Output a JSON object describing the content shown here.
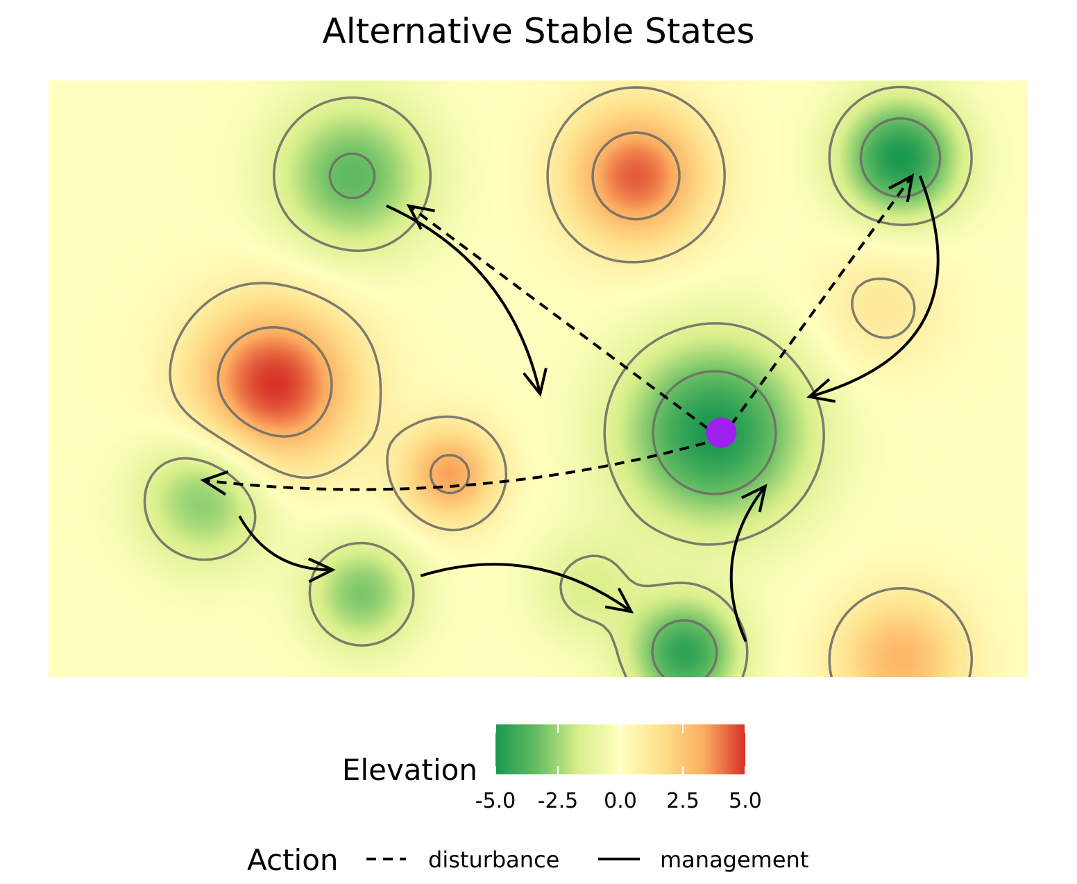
{
  "chart_data": {
    "type": "heatmap",
    "title": "Alternative Stable States",
    "xlabel": "",
    "ylabel": "",
    "fill_legend": {
      "title": "Elevation",
      "ticks": [
        "-5.0",
        "-2.5",
        "0.0",
        "2.5",
        "5.0"
      ],
      "range": [
        -5,
        5
      ],
      "colors": [
        "#1a9850",
        "#66bd63",
        "#d9ef8b",
        "#ffffbf",
        "#fee08b",
        "#fdae61",
        "#d73027"
      ]
    },
    "linetype_legend": {
      "title": "Action",
      "entries": [
        "disturbance",
        "management"
      ]
    },
    "surface": {
      "base": 0,
      "features": [
        {
          "x": 0.31,
          "y": 0.84,
          "h": -3.5,
          "s": 0.07
        },
        {
          "x": 0.23,
          "y": 0.49,
          "h": 5.0,
          "s": 0.075
        },
        {
          "x": 0.6,
          "y": 0.84,
          "h": 4.4,
          "s": 0.065
        },
        {
          "x": 0.87,
          "y": 0.87,
          "h": -5.0,
          "s": 0.055
        },
        {
          "x": 0.68,
          "y": 0.41,
          "h": -5.0,
          "s": 0.085
        },
        {
          "x": 0.41,
          "y": 0.34,
          "h": 3.5,
          "s": 0.045
        },
        {
          "x": 0.16,
          "y": 0.3,
          "h": -3.0,
          "s": 0.06
        },
        {
          "x": 0.32,
          "y": 0.14,
          "h": -3.0,
          "s": 0.05
        },
        {
          "x": 0.65,
          "y": 0.04,
          "h": -4.5,
          "s": 0.05
        },
        {
          "x": 0.87,
          "y": 0.03,
          "h": 3.0,
          "s": 0.06
        },
        {
          "x": 0.85,
          "y": 0.62,
          "h": 1.2,
          "s": 0.06
        },
        {
          "x": 0.55,
          "y": 0.15,
          "h": -1.5,
          "s": 0.05
        }
      ]
    },
    "current_state": {
      "x": 0.687,
      "y": 0.41,
      "color": "#a020f0"
    },
    "transitions": [
      {
        "action": "disturbance",
        "from": [
          0.687,
          0.4
        ],
        "to": [
          0.882,
          0.84
        ],
        "curvature": 0
      },
      {
        "action": "disturbance",
        "from": [
          0.687,
          0.4
        ],
        "to": [
          0.368,
          0.79
        ],
        "curvature": 0
      },
      {
        "action": "disturbance",
        "from": [
          0.687,
          0.4
        ],
        "to": [
          0.158,
          0.33
        ],
        "curvature": -0.1
      },
      {
        "action": "management",
        "from": [
          0.89,
          0.84
        ],
        "to": [
          0.777,
          0.47
        ],
        "curvature": -0.55
      },
      {
        "action": "management",
        "from": [
          0.345,
          0.79
        ],
        "to": [
          0.502,
          0.475
        ],
        "curvature": -0.25
      },
      {
        "action": "management",
        "from": [
          0.195,
          0.27
        ],
        "to": [
          0.29,
          0.18
        ],
        "curvature": 0.3
      },
      {
        "action": "management",
        "from": [
          0.38,
          0.17
        ],
        "to": [
          0.595,
          0.11
        ],
        "curvature": -0.25
      },
      {
        "action": "management",
        "from": [
          0.712,
          0.06
        ],
        "to": [
          0.732,
          0.32
        ],
        "curvature": -0.3
      }
    ]
  }
}
